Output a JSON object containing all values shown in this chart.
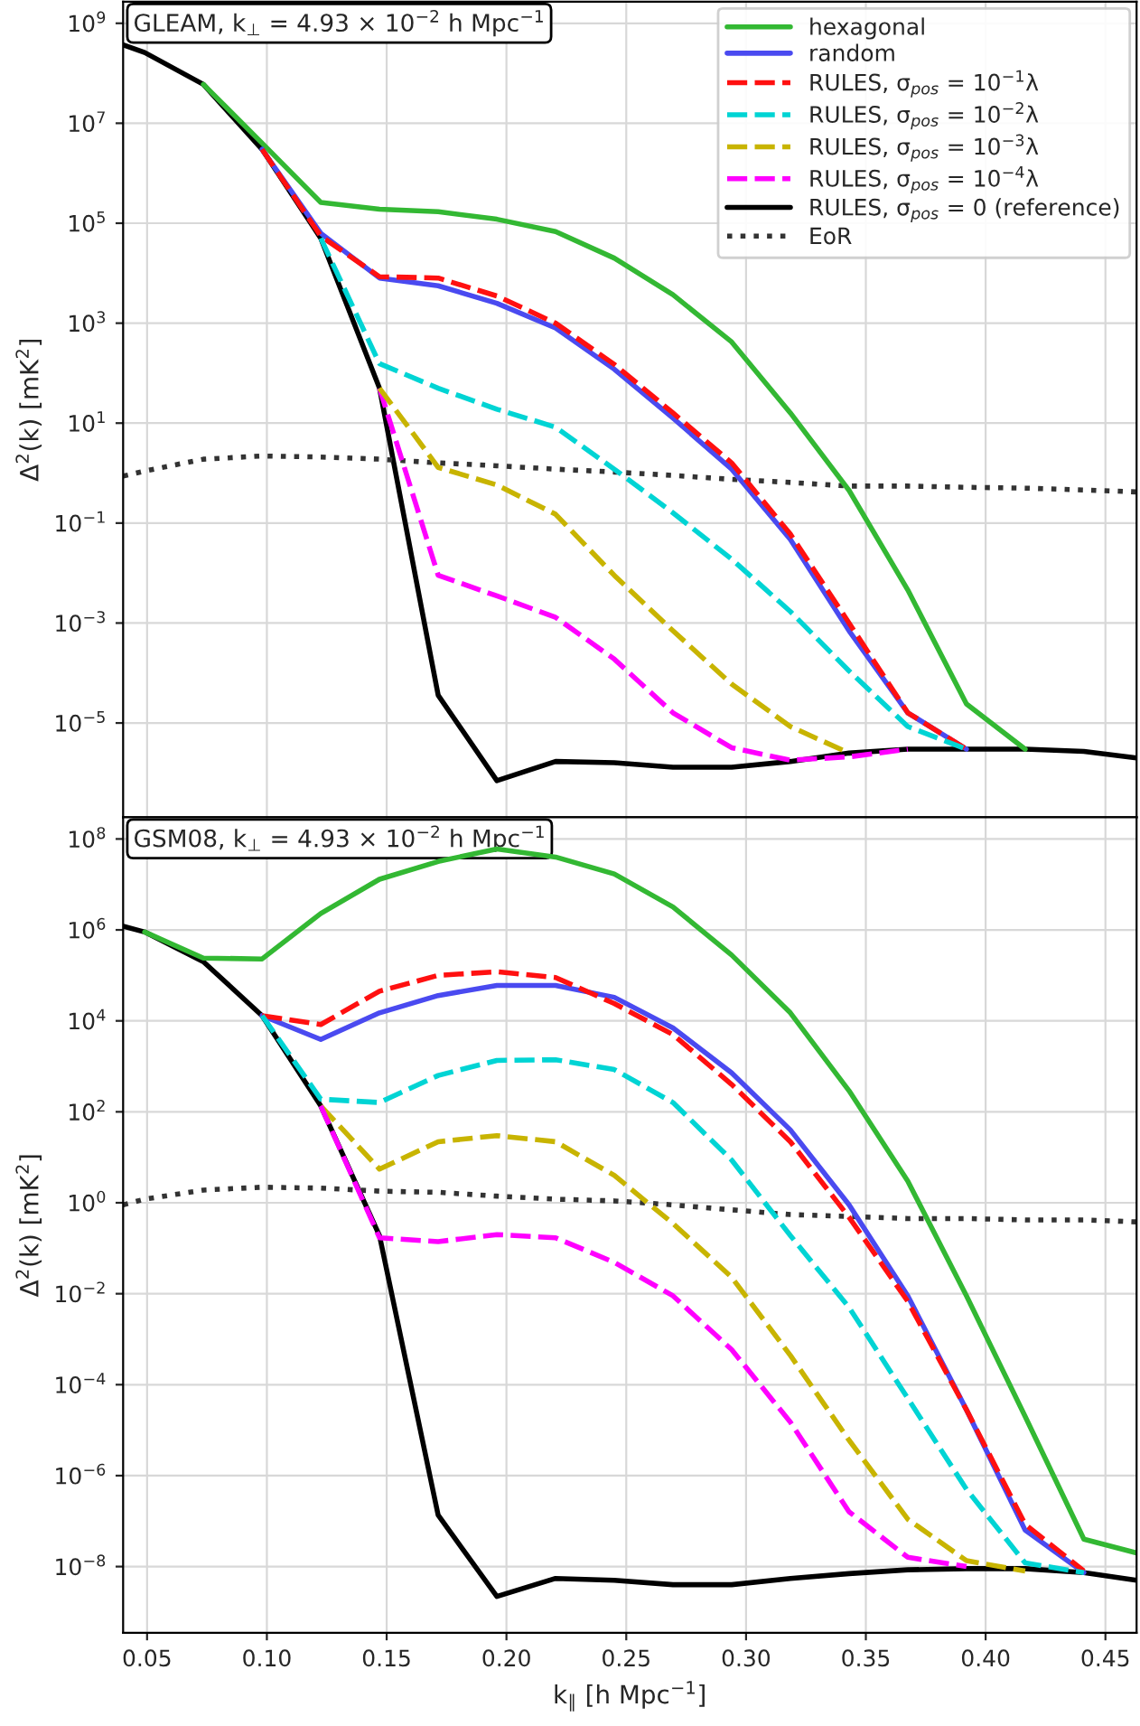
{
  "chart_data": [
    {
      "type": "line",
      "annotations": [
        "GLEAM, k$_{⊥}$ = 4.93 × 10$^{−2}$ h Mpc$^{−1}$"
      ],
      "ylabel": "Δ$^{2}$(k) [mK$^{2}$]",
      "x": [
        0.04,
        0.049,
        0.0735,
        0.098,
        0.1225,
        0.147,
        0.1715,
        0.196,
        0.2205,
        0.245,
        0.2695,
        0.294,
        0.3185,
        0.343,
        0.3675,
        0.392,
        0.4165,
        0.441,
        0.463
      ],
      "xlim": [
        0.04,
        0.463
      ],
      "xticks": [
        {
          "value": 0.05,
          "label": null
        },
        {
          "value": 0.1,
          "label": null
        },
        {
          "value": 0.15,
          "label": null
        },
        {
          "value": 0.2,
          "label": null
        },
        {
          "value": 0.25,
          "label": null
        },
        {
          "value": 0.3,
          "label": null
        },
        {
          "value": 0.35,
          "label": null
        },
        {
          "value": 0.4,
          "label": null
        },
        {
          "value": 0.45,
          "label": null
        }
      ],
      "ylim": [
        1.3e-07,
        2700000000.0
      ],
      "yticks": [
        {
          "value": 1e-05,
          "label": "10$^{−5}$"
        },
        {
          "value": 0.001,
          "label": "10$^{−3}$"
        },
        {
          "value": 0.1,
          "label": "10$^{−1}$"
        },
        {
          "value": 10,
          "label": "10$^{1}$"
        },
        {
          "value": 1000.0,
          "label": "10$^{3}$"
        },
        {
          "value": 100000.0,
          "label": "10$^{5}$"
        },
        {
          "value": 10000000.0,
          "label": "10$^{7}$"
        },
        {
          "value": 1000000000.0,
          "label": "10$^{9}$"
        }
      ],
      "log": "y",
      "grid": true,
      "legend": "top right",
      "tick_labels": "y",
      "series": [
        {
          "name": "hexagonal",
          "color": "#33b833",
          "line_style": "solid",
          "values": [
            null,
            null,
            60000000.0,
            4000000.0,
            260000.0,
            190000.0,
            170000.0,
            120000.0,
            68000.0,
            20000.0,
            3700.0,
            420,
            16,
            0.45,
            0.0046,
            2.4e-05,
            3e-06,
            null,
            null
          ]
        },
        {
          "name": "random",
          "color": "#4a4af0",
          "line_style": "solid",
          "values": [
            null,
            null,
            null,
            3000000.0,
            63000.0,
            8000.0,
            5600.0,
            2500.0,
            800,
            120,
            12.6,
            1.2,
            0.047,
            0.0007,
            1.6e-05,
            3e-06,
            null,
            null,
            null
          ]
        },
        {
          "name": "RULES, σ$_{pos}$ = 10$^{−1}$λ",
          "color": "#ff1010",
          "line_style": "dashed",
          "values": [
            null,
            null,
            null,
            3000000.0,
            55000.0,
            8500.0,
            8000.0,
            3500.0,
            1000.0,
            150,
            16,
            1.6,
            0.06,
            0.001,
            1.6e-05,
            3e-06,
            null,
            null,
            null
          ]
        },
        {
          "name": "RULES, σ$_{pos}$ = 10$^{−2}$λ",
          "color": "#00d4d4",
          "line_style": "dashed",
          "values": [
            null,
            null,
            null,
            null,
            50000.0,
            155,
            50,
            19,
            8.3,
            1.2,
            0.16,
            0.019,
            0.0017,
            0.00011,
            8.5e-06,
            3e-06,
            null,
            null,
            null
          ]
        },
        {
          "name": "RULES, σ$_{pos}$ = 10$^{−3}$λ",
          "color": "#c8b400",
          "line_style": "dashed",
          "values": [
            null,
            null,
            null,
            null,
            null,
            50,
            1.3,
            0.58,
            0.15,
            0.009,
            0.0007,
            6e-05,
            8.5e-06,
            2.5e-06,
            null,
            null,
            null,
            null,
            null
          ]
        },
        {
          "name": "RULES, σ$_{pos}$ = 10$^{−4}$λ",
          "color": "#ff00ff",
          "line_style": "dashed",
          "values": [
            null,
            null,
            null,
            null,
            null,
            50,
            0.009,
            0.0035,
            0.0013,
            0.00019,
            1.6e-05,
            3.2e-06,
            1.8e-06,
            2.1e-06,
            3e-06,
            null,
            null,
            null,
            null
          ]
        },
        {
          "name": "RULES, σ$_{pos}$ = 0 (reference)",
          "color": "#000000",
          "line_style": "solid",
          "values": [
            370000000.0,
            260000000.0,
            60000000.0,
            3000000.0,
            50000.0,
            50,
            3.6e-05,
            7e-07,
            1.7e-06,
            1.6e-06,
            1.3e-06,
            1.3e-06,
            1.7e-06,
            2.5e-06,
            3e-06,
            3e-06,
            3e-06,
            2.7e-06,
            2e-06
          ]
        },
        {
          "name": "EoR",
          "color": "#333333",
          "line_style": "dotted",
          "values": [
            0.87,
            1.1,
            1.9,
            2.2,
            2.1,
            1.9,
            1.6,
            1.4,
            1.2,
            1.05,
            0.9,
            0.75,
            0.65,
            0.55,
            0.55,
            0.52,
            0.5,
            0.46,
            0.42
          ]
        }
      ]
    },
    {
      "type": "line",
      "annotations": [
        "GSM08, k$_{⊥}$ = 4.93 × 10$^{−2}$ h Mpc$^{−1}$"
      ],
      "ylabel": "Δ$^{2}$(k) [mK$^{2}$]",
      "xlabel": "k$_{∥}$ [h Mpc$^{−1}$]",
      "x": [
        0.04,
        0.049,
        0.0735,
        0.098,
        0.1225,
        0.147,
        0.1715,
        0.196,
        0.2205,
        0.245,
        0.2695,
        0.294,
        0.3185,
        0.343,
        0.3675,
        0.392,
        0.4165,
        0.441,
        0.463
      ],
      "xlim": [
        0.04,
        0.463
      ],
      "xticks": [
        {
          "value": 0.05,
          "label": "0.05"
        },
        {
          "value": 0.1,
          "label": "0.10"
        },
        {
          "value": 0.15,
          "label": "0.15"
        },
        {
          "value": 0.2,
          "label": "0.20"
        },
        {
          "value": 0.25,
          "label": "0.25"
        },
        {
          "value": 0.3,
          "label": "0.30"
        },
        {
          "value": 0.35,
          "label": "0.35"
        },
        {
          "value": 0.4,
          "label": "0.40"
        },
        {
          "value": 0.45,
          "label": "0.45"
        }
      ],
      "ylim": [
        3.5e-10,
        300000000.0
      ],
      "yticks": [
        {
          "value": 1e-08,
          "label": "10$^{−8}$"
        },
        {
          "value": 1e-06,
          "label": "10$^{−6}$"
        },
        {
          "value": 0.0001,
          "label": "10$^{−4}$"
        },
        {
          "value": 0.01,
          "label": "10$^{−2}$"
        },
        {
          "value": 1,
          "label": "10$^{0}$"
        },
        {
          "value": 100.0,
          "label": "10$^{2}$"
        },
        {
          "value": 10000.0,
          "label": "10$^{4}$"
        },
        {
          "value": 1000000.0,
          "label": "10$^{6}$"
        },
        {
          "value": 100000000.0,
          "label": "10$^{8}$"
        }
      ],
      "log": "y",
      "grid": true,
      "series": [
        {
          "color": "#33b833",
          "line_style": "solid",
          "values": [
            null,
            900000.0,
            240000.0,
            230000.0,
            2300000.0,
            13000000.0,
            32000000.0,
            60000000.0,
            40000000.0,
            17000000.0,
            3200000.0,
            280000.0,
            15000.0,
            290,
            3,
            0.009,
            2e-05,
            4e-08,
            2e-08
          ]
        },
        {
          "color": "#4a4af0",
          "line_style": "solid",
          "values": [
            null,
            null,
            null,
            13000.0,
            3900.0,
            15000.0,
            36000.0,
            60000.0,
            60000.0,
            33000.0,
            7000.0,
            720,
            40,
            0.9,
            0.009,
            2.8e-05,
            6.3e-08,
            7.4e-09,
            null
          ]
        },
        {
          "color": "#ff1010",
          "line_style": "dashed",
          "values": [
            null,
            null,
            null,
            13000.0,
            8300.0,
            45000.0,
            100000.0,
            120000.0,
            90000.0,
            24000.0,
            5000.0,
            400,
            22,
            0.48,
            0.0068,
            2.8e-05,
            8.5e-08,
            8e-09,
            null
          ]
        },
        {
          "color": "#00d4d4",
          "line_style": "dashed",
          "values": [
            null,
            null,
            null,
            13000.0,
            190,
            160,
            630,
            1350,
            1400,
            850,
            160,
            8.7,
            0.19,
            0.005,
            5e-05,
            5e-07,
            1.2e-08,
            7.4e-09,
            null
          ]
        },
        {
          "color": "#c8b400",
          "line_style": "dashed",
          "values": [
            null,
            null,
            null,
            null,
            135,
            5.5,
            22,
            30,
            22,
            4,
            0.35,
            0.023,
            0.00044,
            6e-06,
            1.1e-07,
            1.35e-08,
            8e-09,
            null,
            null
          ]
        },
        {
          "color": "#ff00ff",
          "line_style": "dashed",
          "values": [
            null,
            null,
            null,
            null,
            135,
            0.17,
            0.14,
            0.2,
            0.17,
            0.049,
            0.009,
            0.00059,
            1.5e-05,
            1.6e-07,
            1.6e-08,
            1e-08,
            null,
            null,
            null
          ]
        },
        {
          "color": "#000000",
          "line_style": "solid",
          "values": [
            1200000.0,
            900000.0,
            200000.0,
            13000.0,
            135,
            0.19,
            1.35e-07,
            2.2e-09,
            5.5e-09,
            5e-09,
            4e-09,
            4e-09,
            5.5e-09,
            7e-09,
            8.5e-09,
            9e-09,
            9e-09,
            7.4e-09,
            5e-09
          ]
        },
        {
          "color": "#333333",
          "line_style": "dotted",
          "values": [
            0.9,
            1.2,
            1.9,
            2.2,
            2.1,
            1.8,
            1.7,
            1.4,
            1.2,
            1.1,
            0.9,
            0.7,
            0.55,
            0.5,
            0.45,
            0.45,
            0.42,
            0.42,
            0.38
          ]
        }
      ]
    }
  ]
}
